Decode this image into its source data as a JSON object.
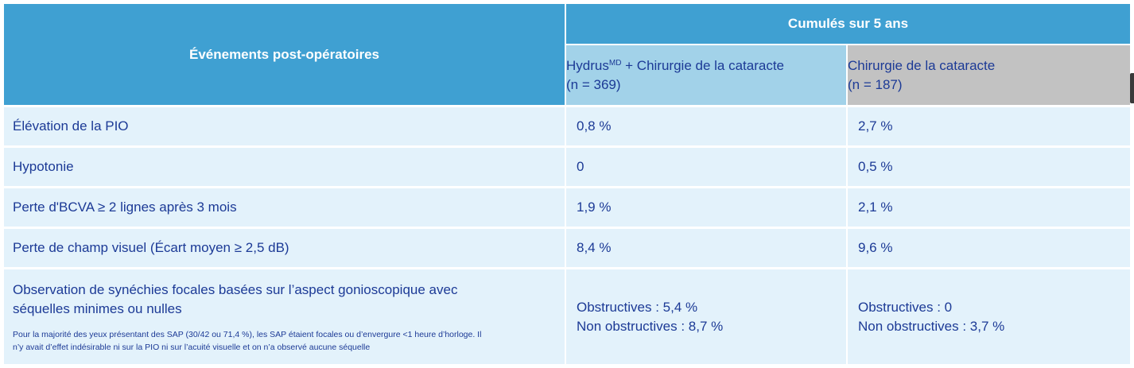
{
  "header": {
    "column1": "Événements post-opératoires",
    "group": "Cumulés sur 5 ans",
    "hydrus": {
      "name": "Hydrus",
      "sup": "MD",
      "rest": " + Chirurgie de la cataracte",
      "n": "(n = 369)"
    },
    "cataract": {
      "name": "Chirurgie de la cataracte",
      "n": "(n = 187)"
    }
  },
  "rows": [
    {
      "event": "Élévation de la PIO",
      "hydrus": "0,8 %",
      "cataract": "2,7 %"
    },
    {
      "event": "Hypotonie",
      "hydrus": "0",
      "cataract": "0,5 %"
    },
    {
      "event": "Perte d'BCVA ≥ 2 lignes après 3 mois",
      "hydrus": "1,9 %",
      "cataract": "2,1 %"
    },
    {
      "event": "Perte de champ visuel (Écart moyen ≥ 2,5 dB)",
      "hydrus": "8,4 %",
      "cataract": "9,6 %"
    }
  ],
  "last_row": {
    "event_line1": "Observation de synéchies focales basées sur l’aspect gonioscopique avec",
    "event_line2": "séquelles minimes ou nulles",
    "note_line1": "Pour la majorité des yeux présentant des SAP (30/42 ou 71,4 %), les SAP étaient focales ou d’envergure <1 heure d’horloge. Il",
    "note_line2": "n’y avait d’effet indésirable ni sur la PIO ni sur l’acuité visuelle et on n’a observé aucune séquelle",
    "hydrus_line1": "Obstructives : 5,4 %",
    "hydrus_line2": "Non obstructives : 8,7 %",
    "cataract_line1": "Obstructives : 0",
    "cataract_line2": "Non obstructives : 3,7 %"
  },
  "colors": {
    "header_blue": "#3fa0d2",
    "hydrus_header": "#a2d2e9",
    "cataract_header": "#c2c2c2",
    "row_background": "#e3f2fb",
    "text_navy": "#1c3a96"
  }
}
